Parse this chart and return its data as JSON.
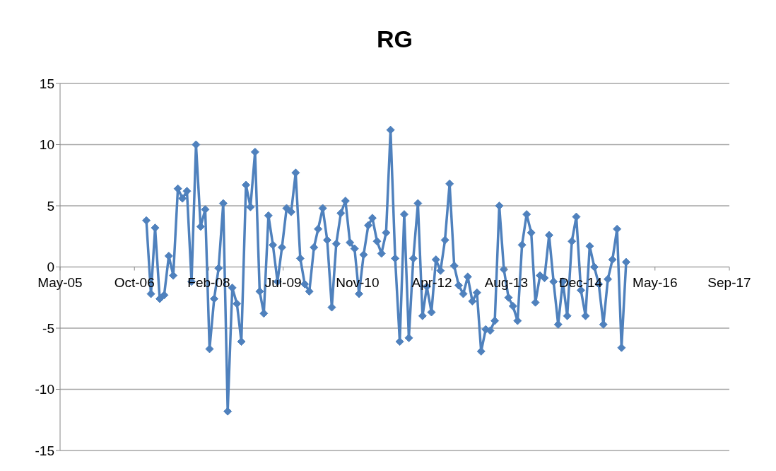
{
  "chart_data": {
    "type": "line",
    "title": "RG",
    "color": "#4f81bd",
    "marker": "diamond",
    "grid": "y",
    "x": [
      "2007-01",
      "2007-02",
      "2007-03",
      "2007-04",
      "2007-05",
      "2007-06",
      "2007-07",
      "2007-08",
      "2007-09",
      "2007-10",
      "2007-11",
      "2007-12",
      "2008-01",
      "2008-02",
      "2008-03",
      "2008-04",
      "2008-05",
      "2008-06",
      "2008-07",
      "2008-08",
      "2008-09",
      "2008-10",
      "2008-11",
      "2008-12",
      "2009-01",
      "2009-02",
      "2009-03",
      "2009-04",
      "2009-05",
      "2009-06",
      "2009-07",
      "2009-08",
      "2009-09",
      "2009-10",
      "2009-11",
      "2009-12",
      "2010-01",
      "2010-02",
      "2010-03",
      "2010-04",
      "2010-05",
      "2010-06",
      "2010-07",
      "2010-08",
      "2010-09",
      "2010-10",
      "2010-11",
      "2010-12",
      "2011-01",
      "2011-02",
      "2011-03",
      "2011-04",
      "2011-05",
      "2011-06",
      "2011-07",
      "2011-08",
      "2011-09",
      "2011-10",
      "2011-11",
      "2011-12",
      "2012-01",
      "2012-02",
      "2012-03",
      "2012-04",
      "2012-05",
      "2012-06",
      "2012-07",
      "2012-08",
      "2012-09",
      "2012-10",
      "2012-11",
      "2012-12",
      "2013-01",
      "2013-02",
      "2013-03",
      "2013-04",
      "2013-05",
      "2013-06",
      "2013-07",
      "2013-08",
      "2013-09",
      "2013-10",
      "2013-11",
      "2013-12",
      "2014-01",
      "2014-02",
      "2014-03",
      "2014-04",
      "2014-05",
      "2014-06",
      "2014-07",
      "2014-08",
      "2014-09",
      "2014-10",
      "2014-11",
      "2014-12",
      "2015-01",
      "2015-02",
      "2015-03",
      "2015-04",
      "2015-05",
      "2015-06",
      "2015-07",
      "2015-08",
      "2015-09",
      "2015-10",
      "2015-11"
    ],
    "values": [
      3.8,
      -2.2,
      3.2,
      -2.6,
      -2.3,
      0.9,
      -0.7,
      6.4,
      5.6,
      6.2,
      -1.2,
      10.0,
      3.3,
      4.7,
      -6.7,
      -2.6,
      -0.1,
      5.2,
      -11.8,
      -1.7,
      -3.0,
      -6.1,
      6.7,
      4.9,
      9.4,
      -2.0,
      -3.8,
      4.2,
      1.8,
      -1.2,
      1.6,
      4.8,
      4.5,
      7.7,
      0.7,
      -1.4,
      -2.0,
      1.6,
      3.1,
      4.8,
      2.2,
      -3.3,
      1.9,
      4.4,
      5.4,
      2.0,
      1.5,
      -2.2,
      1.0,
      3.4,
      4.0,
      2.1,
      1.1,
      2.8,
      11.2,
      0.7,
      -6.1,
      4.3,
      -5.8,
      0.7,
      5.2,
      -4.0,
      -1.6,
      -3.7,
      0.6,
      -0.3,
      2.2,
      6.8,
      0.1,
      -1.5,
      -2.2,
      -0.8,
      -2.8,
      -2.1,
      -6.9,
      -5.1,
      -5.2,
      -4.4,
      5.0,
      -0.2,
      -2.5,
      -3.2,
      -4.4,
      1.8,
      4.3,
      2.8,
      -2.9,
      -0.7,
      -0.9,
      2.6,
      -1.2,
      -4.7,
      -1.2,
      -4.0,
      2.1,
      4.1,
      -1.9,
      -4.0,
      1.7,
      0.0,
      -1.4,
      -4.7,
      -1.0,
      0.6,
      3.1,
      -6.6,
      0.4
    ],
    "xlim": [
      "2005-05-31",
      "2017-09-25"
    ],
    "xticks": [
      {
        "value": "2005-05-31",
        "label": "May-05"
      },
      {
        "value": "2006-10-13",
        "label": "Oct-06"
      },
      {
        "value": "2008-02-25",
        "label": "Feb-08"
      },
      {
        "value": "2009-07-09",
        "label": "Jul-09"
      },
      {
        "value": "2010-11-21",
        "label": "Nov-10"
      },
      {
        "value": "2012-04-04",
        "label": "Apr-12"
      },
      {
        "value": "2013-08-17",
        "label": "Aug-13"
      },
      {
        "value": "2014-12-30",
        "label": "Dec-14"
      },
      {
        "value": "2016-05-13",
        "label": "May-16"
      },
      {
        "value": "2017-09-25",
        "label": "Sep-17"
      }
    ],
    "ylim": [
      -15,
      15
    ],
    "yticks": [
      -15,
      -10,
      -5,
      0,
      5,
      10,
      15
    ]
  }
}
